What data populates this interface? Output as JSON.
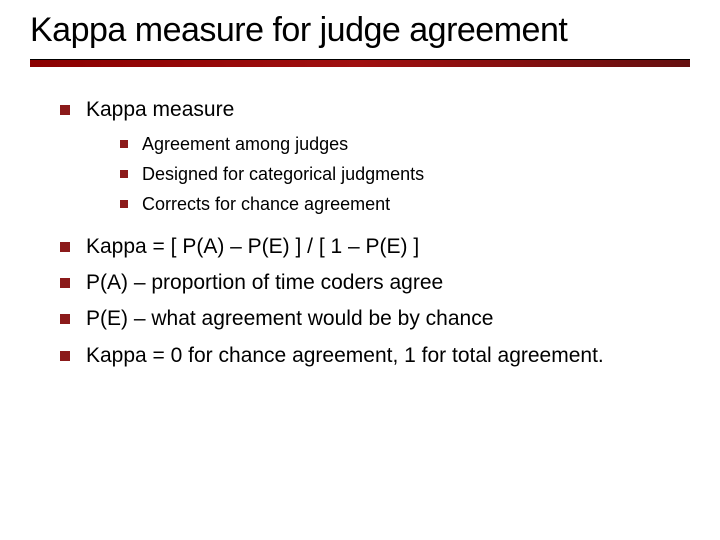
{
  "colors": {
    "bullet": "#8b1a1a",
    "divider_start": "#8b0000",
    "divider_end": "#661010",
    "background": "#ffffff",
    "text": "#000000"
  },
  "typography": {
    "title_fontsize": 34,
    "body_fontsize": 21,
    "sub_fontsize": 18,
    "font_family": "Lucida Sans"
  },
  "title": "Kappa measure for judge agreement",
  "bullets": {
    "b0": "Kappa measure",
    "sub0": "Agreement among judges",
    "sub1": "Designed for categorical judgments",
    "sub2": "Corrects for chance agreement",
    "b1": "Kappa = [ P(A) – P(E) ] / [ 1 – P(E) ]",
    "b2": "P(A) – proportion of time coders agree",
    "b3": "P(E) – what agreement would be by chance",
    "b4": "Kappa = 0 for chance agreement, 1 for total agreement."
  }
}
